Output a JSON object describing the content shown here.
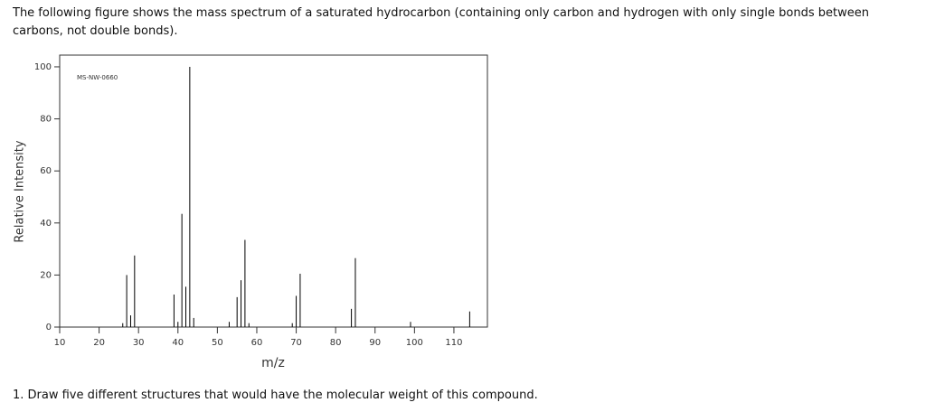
{
  "intro": "The following figure shows the mass spectrum of a saturated hydrocarbon (containing only carbon and hydrogen with only single bonds between carbons, not double bonds).",
  "chart_data": {
    "type": "bar",
    "annotation": "MS-NW-0660",
    "x_label": "m/z",
    "y_label": "Relative Intensity",
    "x": [
      26,
      27,
      28,
      29,
      39,
      40,
      41,
      42,
      43,
      44,
      53,
      55,
      56,
      57,
      58,
      69,
      70,
      71,
      84,
      85,
      99,
      114
    ],
    "values": [
      1.5,
      20,
      4.5,
      27.5,
      12.5,
      2,
      43.5,
      15.5,
      100,
      3.5,
      2,
      11.5,
      18,
      33.5,
      1.5,
      1.5,
      12,
      20.5,
      7,
      26.5,
      2,
      6
    ],
    "color": "#000000",
    "xlim": [
      10,
      118.5
    ],
    "ylim": [
      0,
      104.5
    ],
    "xticks": [
      10,
      20,
      30,
      40,
      50,
      60,
      70,
      80,
      90,
      100,
      110
    ],
    "yticks": [
      0,
      20,
      40,
      60,
      80,
      100
    ]
  },
  "question": "1. Draw five different structures that would have the molecular weight of this compound."
}
